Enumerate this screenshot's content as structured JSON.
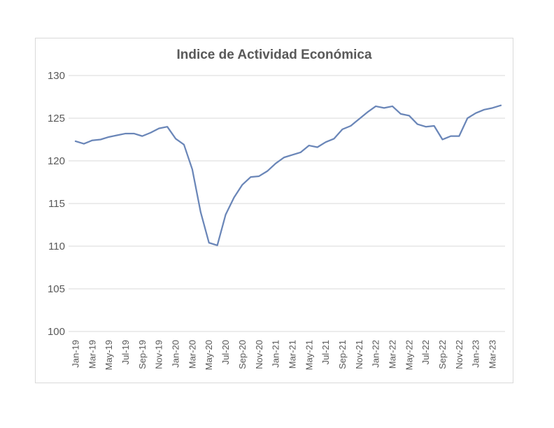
{
  "chart_data": {
    "type": "line",
    "title": "Indice de Actividad Económica",
    "xlabel": "",
    "ylabel": "",
    "ylim": [
      100,
      130
    ],
    "yticks": [
      100,
      105,
      110,
      115,
      120,
      125,
      130
    ],
    "ytick_labels": [
      "100",
      "105",
      "110",
      "115",
      "120",
      "125",
      "130"
    ],
    "grid": true,
    "legend": "none",
    "x": [
      "Jan-19",
      "Feb-19",
      "Mar-19",
      "Apr-19",
      "May-19",
      "Jun-19",
      "Jul-19",
      "Aug-19",
      "Sep-19",
      "Oct-19",
      "Nov-19",
      "Dec-19",
      "Jan-20",
      "Feb-20",
      "Mar-20",
      "Apr-20",
      "May-20",
      "Jun-20",
      "Jul-20",
      "Aug-20",
      "Sep-20",
      "Oct-20",
      "Nov-20",
      "Dec-20",
      "Jan-21",
      "Feb-21",
      "Mar-21",
      "Apr-21",
      "May-21",
      "Jun-21",
      "Jul-21",
      "Aug-21",
      "Sep-21",
      "Oct-21",
      "Nov-21",
      "Dec-21",
      "Jan-22",
      "Feb-22",
      "Mar-22",
      "Apr-22",
      "May-22",
      "Jun-22",
      "Jul-22",
      "Aug-22",
      "Sep-22",
      "Oct-22",
      "Nov-22",
      "Dec-22",
      "Jan-23",
      "Feb-23",
      "Mar-23",
      "Apr-23"
    ],
    "x_tick_labels": [
      "Jan-19",
      "Mar-19",
      "May-19",
      "Jul-19",
      "Sep-19",
      "Nov-19",
      "Jan-20",
      "Mar-20",
      "May-20",
      "Jul-20",
      "Sep-20",
      "Nov-20",
      "Jan-21",
      "Mar-21",
      "May-21",
      "Jul-21",
      "Sep-21",
      "Nov-21",
      "Jan-22",
      "Mar-22",
      "May-22",
      "Jul-22",
      "Sep-22",
      "Nov-22",
      "Jan-23",
      "Mar-23"
    ],
    "series": [
      {
        "color": "#6a86b8",
        "values": [
          122.3,
          122.0,
          122.4,
          122.5,
          122.8,
          123.0,
          123.2,
          123.2,
          122.9,
          123.3,
          123.8,
          124.0,
          122.6,
          121.9,
          119.0,
          114.0,
          110.4,
          110.1,
          113.7,
          115.7,
          117.2,
          118.1,
          118.2,
          118.8,
          119.7,
          120.4,
          120.7,
          121.0,
          121.8,
          121.6,
          122.2,
          122.6,
          123.7,
          124.1,
          124.9,
          125.7,
          126.4,
          126.2,
          126.4,
          125.5,
          125.3,
          124.3,
          124.0,
          124.1,
          122.5,
          122.9,
          122.9,
          125.0,
          125.6,
          126.0,
          126.2,
          126.5
        ]
      }
    ]
  }
}
